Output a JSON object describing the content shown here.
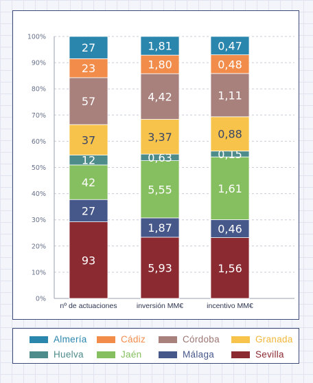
{
  "chart_data": {
    "type": "bar",
    "stacked": "percent",
    "categories": [
      "nº de actuaciones",
      "inversión MM€",
      "incentivo MM€"
    ],
    "ylim": [
      0,
      100
    ],
    "yticks": [
      "0%",
      "10%",
      "20%",
      "30%",
      "40%",
      "50%",
      "60%",
      "70%",
      "80%",
      "90%",
      "100%"
    ],
    "legend_position": "bottom",
    "series": [
      {
        "name": "Sevilla",
        "color": "#8c2a32",
        "text_color": "#8c2a32",
        "values": [
          93,
          5.93,
          1.56
        ],
        "labels": [
          "93",
          "5,93",
          "1,56"
        ]
      },
      {
        "name": "Málaga",
        "color": "#46578a",
        "text_color": "#46578a",
        "values": [
          27,
          1.87,
          0.46
        ],
        "labels": [
          "27",
          "1,87",
          "0,46"
        ]
      },
      {
        "name": "Jaén",
        "color": "#86bf5f",
        "text_color": "#86bf5f",
        "values": [
          42,
          5.55,
          1.61
        ],
        "labels": [
          "42",
          "5,55",
          "1,61"
        ]
      },
      {
        "name": "Huelva",
        "color": "#4e8b8b",
        "text_color": "#4e8b8b",
        "values": [
          12,
          0.63,
          0.15
        ],
        "labels": [
          "12",
          "0,63",
          "0,15"
        ]
      },
      {
        "name": "Granada",
        "color": "#f7c34a",
        "text_color": "#f2b63a",
        "values": [
          37,
          3.37,
          0.88
        ],
        "labels": [
          "37",
          "3,37",
          "0,88"
        ]
      },
      {
        "name": "Córdoba",
        "color": "#a8817d",
        "text_color": "#9b7571",
        "values": [
          57,
          4.42,
          1.11
        ],
        "labels": [
          "57",
          "4,42",
          "1,11"
        ]
      },
      {
        "name": "Cádiz",
        "color": "#f28c4b",
        "text_color": "#f28c4b",
        "values": [
          23,
          1.8,
          0.48
        ],
        "labels": [
          "23",
          "1,80",
          "0,48"
        ]
      },
      {
        "name": "Almería",
        "color": "#2a86ad",
        "text_color": "#2a86ad",
        "values": [
          27,
          1.81,
          0.47
        ],
        "labels": [
          "27",
          "1,81",
          "0,47"
        ]
      }
    ],
    "legend_order": [
      "Almería",
      "Cádiz",
      "Córdoba",
      "Granada",
      "Huelva",
      "Jaén",
      "Málaga",
      "Sevilla"
    ]
  }
}
